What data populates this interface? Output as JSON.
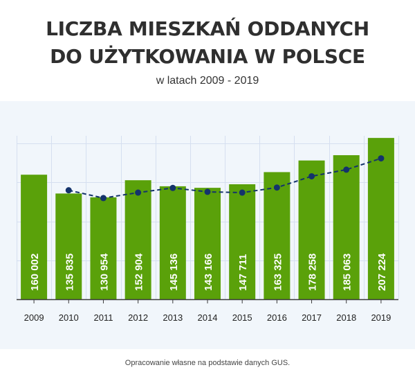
{
  "header": {
    "title_line1": "LICZBA MIESZKAŃ ODDANYCH",
    "title_line2": "DO UŻYTKOWANIA W POLSCE",
    "subtitle": "w latach 2009 - 2019"
  },
  "footer": {
    "source": "Opracowanie własne na podstawie danych GUS."
  },
  "colors": {
    "bar": "#5aa10a",
    "line": "#14336b",
    "grid": "#d5dff0",
    "axis": "#3a3a3a",
    "panel": "#f1f6fb"
  },
  "chart_data": {
    "type": "bar",
    "categories": [
      "2009",
      "2010",
      "2011",
      "2012",
      "2013",
      "2014",
      "2015",
      "2016",
      "2017",
      "2018",
      "2019"
    ],
    "values": [
      160002,
      135835,
      130954,
      152904,
      145136,
      143166,
      147711,
      163325,
      178258,
      185063,
      207224
    ],
    "value_labels": [
      "160 002",
      "135 835",
      "130 954",
      "152 904",
      "145 136",
      "143 166",
      "147 711",
      "163 325",
      "178 258",
      "185 063",
      "207 224"
    ],
    "trend_line": [
      140000,
      130000,
      137000,
      143000,
      138000,
      137000,
      143500,
      158000,
      166500,
      181000
    ],
    "trend_categories": [
      "2010",
      "2011",
      "2012",
      "2013",
      "2014",
      "2015",
      "2016",
      "2017",
      "2018",
      "2019"
    ],
    "ylim": [
      0,
      210000
    ],
    "grid": true,
    "xlabel": "",
    "ylabel": ""
  }
}
